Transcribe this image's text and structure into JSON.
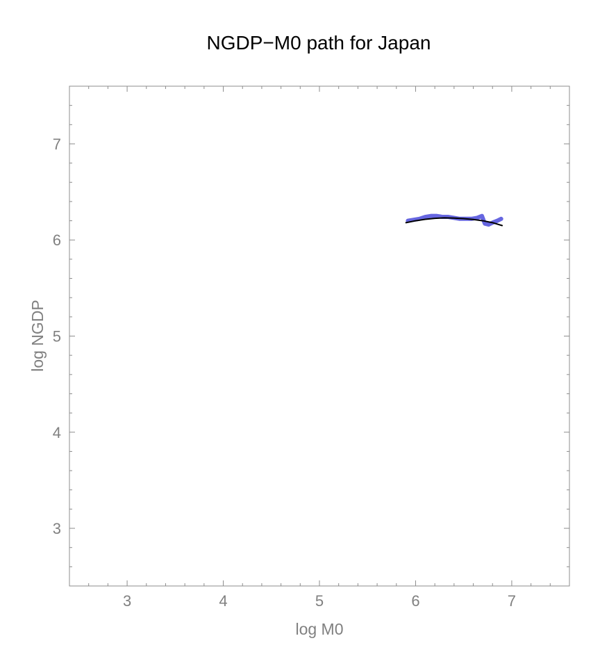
{
  "chart_data": {
    "type": "line",
    "title": "NGDP−M0 path for Japan",
    "xlabel": "log M0",
    "ylabel": "log NGDP",
    "xlim": [
      2.4,
      7.6
    ],
    "ylim": [
      2.4,
      7.6
    ],
    "x_ticks": [
      "3",
      "4",
      "5",
      "6",
      "7"
    ],
    "y_ticks": [
      "3",
      "4",
      "5",
      "6",
      "7"
    ],
    "grid": false,
    "series": [
      {
        "color": "#5555dd",
        "style": "thick",
        "points": [
          [
            5.92,
            6.2
          ],
          [
            5.98,
            6.21
          ],
          [
            6.04,
            6.22
          ],
          [
            6.1,
            6.24
          ],
          [
            6.16,
            6.25
          ],
          [
            6.22,
            6.25
          ],
          [
            6.28,
            6.24
          ],
          [
            6.34,
            6.24
          ],
          [
            6.4,
            6.23
          ],
          [
            6.46,
            6.22
          ],
          [
            6.52,
            6.22
          ],
          [
            6.58,
            6.22
          ],
          [
            6.64,
            6.23
          ],
          [
            6.69,
            6.25
          ],
          [
            6.72,
            6.17
          ],
          [
            6.76,
            6.16
          ],
          [
            6.8,
            6.18
          ],
          [
            6.85,
            6.2
          ],
          [
            6.89,
            6.22
          ]
        ]
      },
      {
        "color": "#000000",
        "style": "fit",
        "points": [
          [
            5.9,
            6.18
          ],
          [
            6.0,
            6.2
          ],
          [
            6.1,
            6.215
          ],
          [
            6.2,
            6.225
          ],
          [
            6.3,
            6.23
          ],
          [
            6.4,
            6.228
          ],
          [
            6.5,
            6.222
          ],
          [
            6.6,
            6.213
          ],
          [
            6.7,
            6.2
          ],
          [
            6.8,
            6.18
          ],
          [
            6.9,
            6.15
          ]
        ]
      }
    ]
  }
}
